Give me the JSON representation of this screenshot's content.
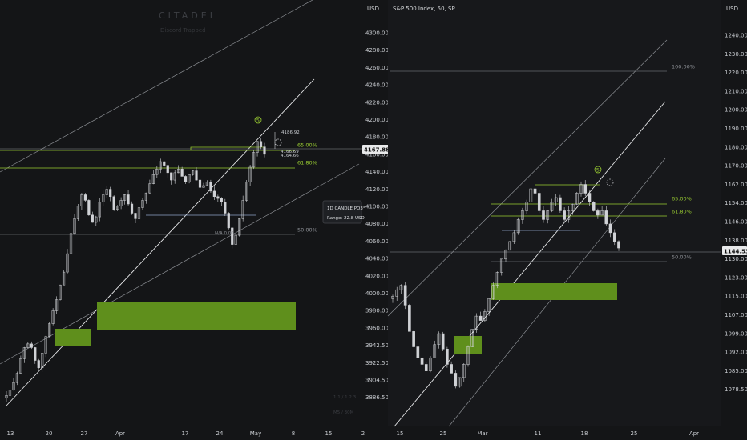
{
  "colors": {
    "background": "#141517",
    "pane_background": "#17181b",
    "candle": "#d0d2d6",
    "channel": "#8a8d92",
    "midline": "#e6e7e9",
    "fib_green": "#9acd32",
    "fib_grey": "#8d9096",
    "zone_green": "#5f8f1c",
    "level_blue": "#8fa3c9",
    "price_label_bg": "#e8e9ea",
    "price_label_text": "#111111"
  },
  "watermark": {
    "brand": "CITADEL",
    "sub": "Discord Trapped"
  },
  "left_pane": {
    "unit": "USD",
    "y_ticks": [
      "4300.00",
      "4280.00",
      "4260.00",
      "4240.00",
      "4220.00",
      "4200.00",
      "4180.00",
      "4160.00",
      "4140.00",
      "4120.00",
      "4100.00",
      "4080.00",
      "4060.00",
      "4040.00",
      "4020.00",
      "4000.00",
      "3980.00",
      "3960.00",
      "3942.50",
      "3922.50",
      "3904.50",
      "3886.50"
    ],
    "x_ticks": [
      "13",
      "20",
      "27",
      "Apr",
      "17",
      "24",
      "May",
      "8",
      "15",
      "2"
    ],
    "price_label": "4167.88",
    "fib_labels": [
      "65.00%",
      "61.80%",
      "50.00%"
    ],
    "wave_label": "5",
    "top_value": "4186.92",
    "small_values": [
      "4166.69",
      "4164.66"
    ],
    "mid_label": "N/A 0.00",
    "info_box": {
      "title": "1D CANDLE PO3°",
      "range": "Range: 22.8 USD"
    },
    "faint_bottom": [
      "1.1 / 1.2.3",
      "M5 / 30M"
    ]
  },
  "right_pane": {
    "title": "S&P 500 Index, 50, SP",
    "unit": "USD",
    "y_ticks": [
      "1240.00",
      "1230.00",
      "1220.00",
      "1210.00",
      "1200.00",
      "1190.00",
      "1180.00",
      "1170.00",
      "1162.00",
      "1154.00",
      "1146.00",
      "1138.00",
      "1130.00",
      "1123.00",
      "1115.00",
      "1107.00",
      "1099.00",
      "1092.00",
      "1085.00",
      "1078.50"
    ],
    "x_ticks": [
      "15",
      "25",
      "Mar",
      "11",
      "18",
      "25",
      "Apr"
    ],
    "price_label": "1144.53",
    "fib_labels": [
      "100.00%",
      "65.00%",
      "61.80%",
      "50.00%"
    ],
    "wave_label": "5"
  },
  "chart_data": [
    {
      "type": "candlestick",
      "pane": "left",
      "unit": "USD",
      "ylim": [
        3880,
        4310
      ],
      "x_tick_labels": [
        "13",
        "20",
        "27",
        "Apr",
        "17",
        "24",
        "May",
        "8",
        "15",
        "2"
      ],
      "last_price": 4167.88,
      "high_marker": 4186.92,
      "fib_levels": [
        {
          "label": "65.00%",
          "price": 4168
        },
        {
          "label": "61.80%",
          "price": 4148
        },
        {
          "label": "50.00%",
          "price": 4076
        }
      ],
      "zones": [
        {
          "from": 3986,
          "to": 4004
        },
        {
          "from": 3957,
          "to": 3968
        }
      ],
      "closes": [
        3906,
        3912,
        3920,
        3930,
        3946,
        3958,
        3962,
        3958,
        3944,
        3936,
        3952,
        3970,
        3984,
        3998,
        4010,
        4026,
        4040,
        4060,
        4082,
        4098,
        4112,
        4124,
        4118,
        4102,
        4094,
        4100,
        4116,
        4124,
        4130,
        4122,
        4108,
        4112,
        4118,
        4124,
        4114,
        4104,
        4098,
        4110,
        4118,
        4126,
        4136,
        4146,
        4152,
        4160,
        4156,
        4148,
        4140,
        4148,
        4152,
        4144,
        4138,
        4146,
        4150,
        4140,
        4132,
        4134,
        4138,
        4128,
        4122,
        4120,
        4116,
        4104,
        4088,
        4070,
        4080,
        4098,
        4118,
        4138,
        4154,
        4170,
        4182,
        4176,
        4168
      ]
    },
    {
      "type": "candlestick",
      "pane": "right",
      "title": "S&P 500 Index, 50, SP",
      "unit": "USD",
      "ylim": [
        1074,
        1246
      ],
      "x_tick_labels": [
        "15",
        "25",
        "Mar",
        "11",
        "18",
        "25",
        "Apr"
      ],
      "last_price": 1144.53,
      "fib_levels": [
        {
          "label": "100.00%",
          "price": 1222
        },
        {
          "label": "65.00%",
          "price": 1166
        },
        {
          "label": "61.80%",
          "price": 1162
        },
        {
          "label": "50.00%",
          "price": 1142
        }
      ],
      "zones": [
        {
          "from": 1123,
          "to": 1130
        },
        {
          "from": 1102,
          "to": 1109
        }
      ],
      "closes": [
        1121,
        1124,
        1126,
        1117,
        1105,
        1098,
        1093,
        1090,
        1087,
        1093,
        1099,
        1104,
        1097,
        1090,
        1086,
        1080,
        1084,
        1090,
        1098,
        1106,
        1112,
        1110,
        1114,
        1120,
        1126,
        1132,
        1138,
        1142,
        1146,
        1150,
        1156,
        1160,
        1164,
        1170,
        1168,
        1160,
        1156,
        1160,
        1164,
        1166,
        1160,
        1156,
        1160,
        1163,
        1168,
        1172,
        1168,
        1164,
        1160,
        1158,
        1160,
        1154,
        1150,
        1146,
        1143
      ]
    }
  ]
}
